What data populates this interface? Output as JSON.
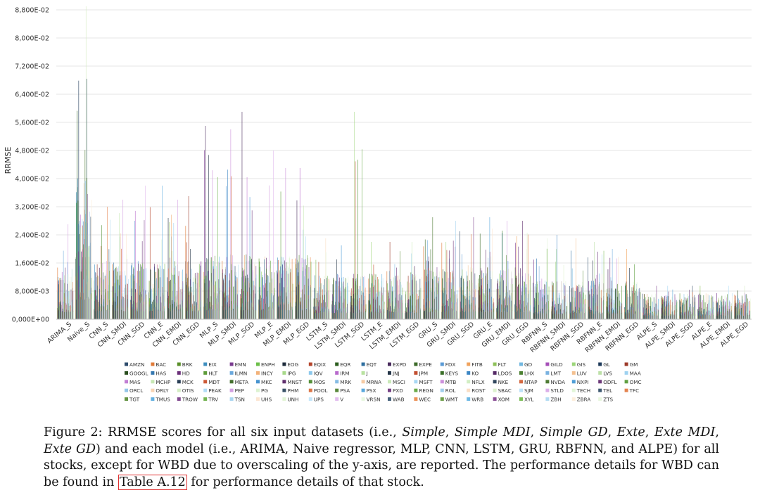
{
  "chart_data": {
    "type": "bar",
    "ylabel": "RRMSE",
    "ylim": [
      0,
      0.088
    ],
    "yticks": [
      "0,000E+00",
      "8,000E-03",
      "1,600E-02",
      "2,400E-02",
      "3,200E-02",
      "4,000E-02",
      "4,800E-02",
      "5,600E-02",
      "6,400E-02",
      "7,200E-02",
      "8,000E-02",
      "8,800E-02"
    ],
    "categories": [
      "ARIMA_S",
      "Naive_S",
      "CNN_S",
      "CNN_SMDI",
      "CNN_SGD",
      "CNN_E",
      "CNN_EMDI",
      "CNN_EGD",
      "MLP_S",
      "MLP_SMDI",
      "MLP_SGD",
      "MLP_E",
      "MLP_EMDI",
      "MLP_EGD",
      "LSTM_S",
      "LSTM_SMDI",
      "LSTM_SGD",
      "LSTM_E",
      "LSTM_EMDI",
      "LSTM_EGD",
      "GRU_S",
      "GRU_SMDI",
      "GRU_SGD",
      "GRU_E",
      "GRU_EMDI",
      "GRU_EGD",
      "RBFNN_S",
      "RBFNN_SMDI",
      "RBFNN_SGD",
      "RBFNN_E",
      "RBFNN_EMDI",
      "RBFNN_EGD",
      "ALPE_S",
      "ALPE_SMDI",
      "ALPE_SGD",
      "ALPE_E",
      "ALPE_EMDI",
      "ALPE_EGD"
    ],
    "category_max": [
      0.027,
      0.089,
      0.032,
      0.034,
      0.038,
      0.038,
      0.034,
      0.035,
      0.055,
      0.054,
      0.059,
      0.048,
      0.043,
      0.043,
      0.023,
      0.021,
      0.059,
      0.022,
      0.022,
      0.022,
      0.029,
      0.028,
      0.029,
      0.029,
      0.028,
      0.028,
      0.023,
      0.024,
      0.023,
      0.022,
      0.02,
      0.02,
      0.0095,
      0.0095,
      0.0095,
      0.0095,
      0.0095,
      0.0095
    ],
    "category_typical": [
      0.008,
      0.022,
      0.009,
      0.009,
      0.009,
      0.009,
      0.009,
      0.009,
      0.01,
      0.01,
      0.01,
      0.01,
      0.01,
      0.01,
      0.007,
      0.007,
      0.007,
      0.007,
      0.007,
      0.007,
      0.008,
      0.008,
      0.008,
      0.008,
      0.008,
      0.008,
      0.006,
      0.006,
      0.006,
      0.006,
      0.006,
      0.006,
      0.004,
      0.004,
      0.004,
      0.004,
      0.004,
      0.004
    ],
    "grid": true,
    "legend_position": "bottom",
    "legend": [
      "AMZN",
      "BAC",
      "BRK",
      "EIX",
      "EMN",
      "ENPH",
      "EOG",
      "EQIX",
      "EQR",
      "EQT",
      "EXPD",
      "EXPE",
      "FDX",
      "FITB",
      "FLT",
      "GD",
      "GILD",
      "GIS",
      "GL",
      "GM",
      "GOOGL",
      "HAS",
      "HD",
      "HLT",
      "ILMN",
      "INCY",
      "IPG",
      "IQV",
      "IRM",
      "J",
      "JNJ",
      "JPM",
      "KEYS",
      "KO",
      "LDOS",
      "LHX",
      "LMT",
      "LUV",
      "LVS",
      "MAA",
      "MAS",
      "MCHP",
      "MCK",
      "MDT",
      "META",
      "MKC",
      "MNST",
      "MOS",
      "MRK",
      "MRNA",
      "MSCI",
      "MSFT",
      "MTB",
      "NFLX",
      "NKE",
      "NTAP",
      "NVDA",
      "NXPI",
      "ODFL",
      "OMC",
      "ORCL",
      "ORLY",
      "OTIS",
      "PEAK",
      "PEP",
      "PG",
      "PHM",
      "POOL",
      "PSA",
      "PSX",
      "PXD",
      "REGN",
      "ROL",
      "ROST",
      "SBAC",
      "SJM",
      "STLD",
      "TECH",
      "TEL",
      "TFC",
      "TGT",
      "TMUS",
      "TROW",
      "TRV",
      "TSN",
      "UHS",
      "UNH",
      "UPS",
      "V",
      "VRSN",
      "WAB",
      "WEC",
      "WMT",
      "WRB",
      "XOM",
      "XYL",
      "ZBH",
      "ZBRA",
      "ZTS"
    ],
    "legend_colors": [
      "#2e4c6d",
      "#e07b39",
      "#5a8f29",
      "#3f8fbf",
      "#7a3b8f",
      "#6dbf4a",
      "#1f2d3d",
      "#b5452c",
      "#2c5e1f",
      "#2f6f9f",
      "#4a2c5e",
      "#3d6b2a",
      "#5b9bd5",
      "#f0a35e",
      "#8fc15b",
      "#73b8e0",
      "#a64fb8",
      "#9dd67a",
      "#1e3a5a",
      "#9c3a2a",
      "#2a4e1e",
      "#3578b0",
      "#6b2f7a",
      "#5e9c3a",
      "#6aa8dc",
      "#f2b27a",
      "#a8d98a",
      "#8cc8ec",
      "#b86acc",
      "#b9e2a0",
      "#243548",
      "#c24e30",
      "#3a6e28",
      "#3c86c4",
      "#552a66",
      "#4a7f30",
      "#7ab2e0",
      "#f4c090",
      "#bde0a8",
      "#9ed2f0",
      "#c27fd4",
      "#c8e8b4",
      "#2a3f56",
      "#cc5a38",
      "#446f2e",
      "#4693cf",
      "#61306e",
      "#56913a",
      "#86bce4",
      "#f6cba4",
      "#cbe9ba",
      "#a8d8f4",
      "#cc91dc",
      "#d2eec4",
      "#33485f",
      "#d46840",
      "#4f7c35",
      "#509ed6",
      "#6d3a7a",
      "#60a042",
      "#94c6e8",
      "#f8d5b4",
      "#d4edc4",
      "#b2dcf6",
      "#d3a0e2",
      "#dcf2d0",
      "#3a5268",
      "#dc7648",
      "#5a883c",
      "#5aa8dc",
      "#784286",
      "#6aaa4a",
      "#a0ceec",
      "#fadec4",
      "#dcf1ce",
      "#bce2f8",
      "#dbaee8",
      "#e2f5d8",
      "#405a72",
      "#e48450",
      "#659444",
      "#64b0e0",
      "#824a90",
      "#74b452",
      "#aad6f0",
      "#fce6d2",
      "#e2f4d6",
      "#c4e6fa",
      "#e2bcee",
      "#e8f8e0",
      "#46627c",
      "#ec9258",
      "#70a04c",
      "#6eb8e4",
      "#8c5298",
      "#7ebe5a",
      "#b4dcf2",
      "#fdeedc",
      "#e8f7de"
    ]
  },
  "caption": {
    "p1": "Figure 2: RRMSE scores for all six input datasets (i.e., ",
    "i1": "Simple",
    "p2": ", ",
    "i2": "Simple MDI",
    "p3": ", ",
    "i3": "Simple GD",
    "p4": ", ",
    "i4": "Exte",
    "p5": ", ",
    "i5": "Exte MDI",
    "p6": ", ",
    "i6": "Exte GD",
    "p7": ") and each model (i.e., ARIMA, Naive regressor, MLP, CNN, LSTM, GRU, RBFNN, and ALPE) for all stocks, except for WBD due to overscaling of the y-axis, are reported. The performance details for WBD can be found in ",
    "ref": "Table A.12",
    "p8": " for performance details of that stock."
  }
}
